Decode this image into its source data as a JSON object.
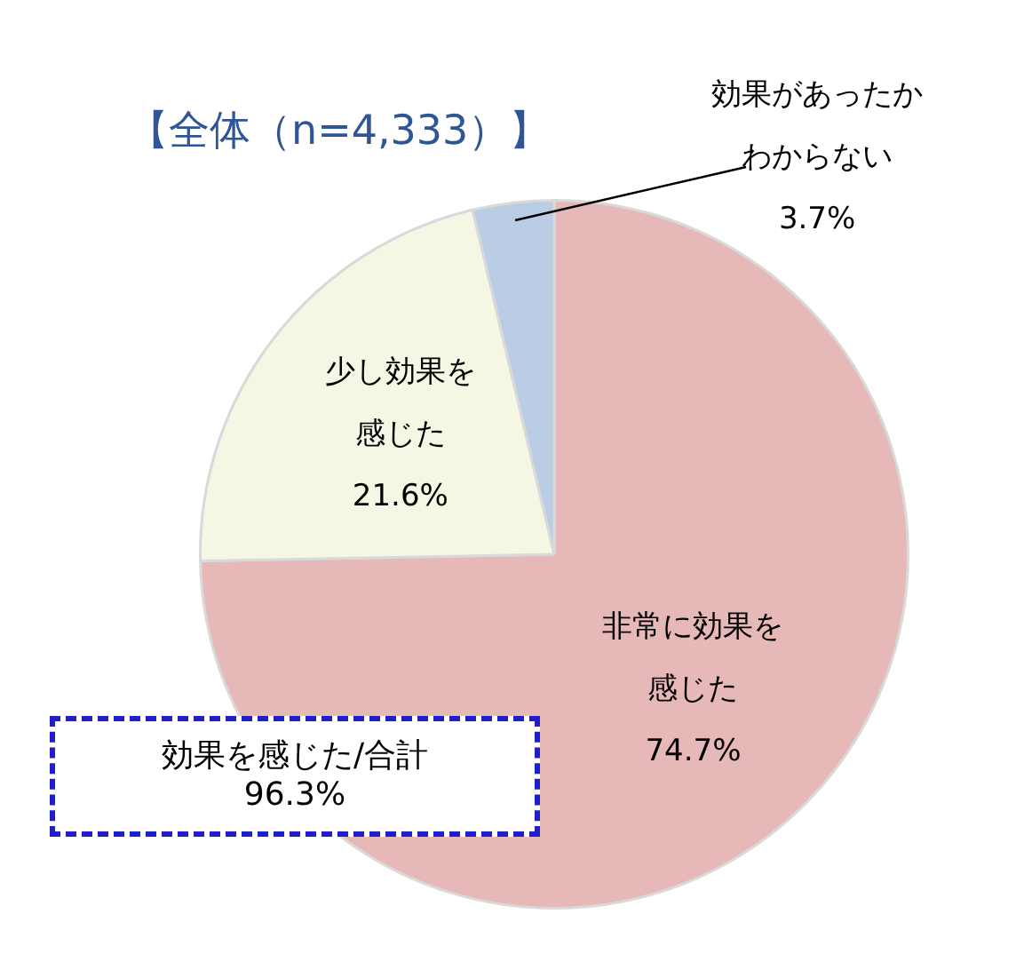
{
  "chart_data": {
    "type": "pie",
    "title": "【全体（n=4,333）】",
    "categories": [
      "非常に効果を感じた",
      "少し効果を感じた",
      "効果があったかわからない"
    ],
    "values": [
      74.7,
      21.6,
      3.7
    ],
    "colors": [
      "#e6b9b8",
      "#f6f6e4",
      "#b9cde5"
    ],
    "value_labels": [
      "74.7%",
      "21.6%",
      "3.7%"
    ],
    "legend": false,
    "annotations": [
      "効果を感じた/合計\n96.3%"
    ]
  }
}
